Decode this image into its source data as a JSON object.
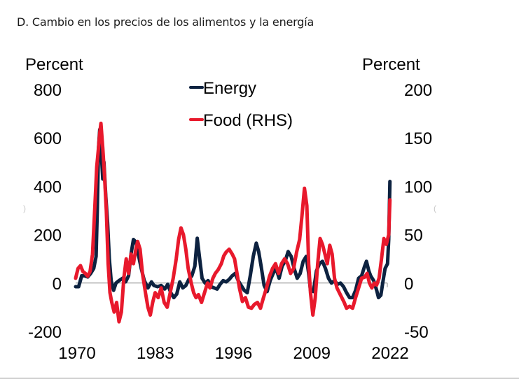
{
  "page": {
    "title": "D. Cambio en los precios de los alimentos y la energía"
  },
  "chart_data": {
    "type": "line",
    "title": "D. Cambio en los precios de los alimentos y la energía",
    "left_axis": {
      "label": "Percent",
      "ticks": [
        800,
        600,
        400,
        200,
        0,
        -200
      ],
      "tick_labels": [
        "800",
        "600",
        "400",
        "200",
        "0",
        "-200"
      ],
      "range": [
        -200,
        800
      ]
    },
    "right_axis": {
      "label": "Percent",
      "ticks": [
        200,
        150,
        100,
        50,
        0,
        -50
      ],
      "tick_labels": [
        "200",
        "150",
        "100",
        "50",
        "0",
        "-50"
      ],
      "range": [
        -50,
        200
      ]
    },
    "x_axis": {
      "ticks": [
        1970,
        1983,
        1996,
        2009,
        2022
      ],
      "tick_labels": [
        "1970",
        "1983",
        "1996",
        "2009",
        "2022"
      ],
      "range": [
        1970,
        2022
      ]
    },
    "grid": false,
    "legend": {
      "position": "top-center",
      "entries": [
        {
          "name": "Energy",
          "color": "#0d2240"
        },
        {
          "name": "Food (RHS)",
          "color": "#e8192c"
        }
      ]
    },
    "series": [
      {
        "name": "Energy",
        "axis": "left",
        "color": "#0d2240",
        "points": [
          [
            1970.0,
            -15
          ],
          [
            1970.5,
            -15
          ],
          [
            1971.0,
            30
          ],
          [
            1971.5,
            30
          ],
          [
            1972.0,
            25
          ],
          [
            1972.5,
            40
          ],
          [
            1973.0,
            60
          ],
          [
            1973.4,
            110
          ],
          [
            1973.6,
            300
          ],
          [
            1973.8,
            560
          ],
          [
            1974.0,
            635
          ],
          [
            1974.3,
            520
          ],
          [
            1974.5,
            430
          ],
          [
            1974.7,
            500
          ],
          [
            1975.0,
            360
          ],
          [
            1975.3,
            250
          ],
          [
            1975.6,
            100
          ],
          [
            1975.9,
            10
          ],
          [
            1976.3,
            -30
          ],
          [
            1976.7,
            0
          ],
          [
            1977.2,
            10
          ],
          [
            1977.8,
            20
          ],
          [
            1978.3,
            5
          ],
          [
            1978.8,
            30
          ],
          [
            1979.2,
            120
          ],
          [
            1979.6,
            180
          ],
          [
            1980.0,
            170
          ],
          [
            1980.4,
            120
          ],
          [
            1980.9,
            60
          ],
          [
            1981.4,
            10
          ],
          [
            1982.0,
            -20
          ],
          [
            1982.6,
            5
          ],
          [
            1983.0,
            -10
          ],
          [
            1983.6,
            -15
          ],
          [
            1984.2,
            -10
          ],
          [
            1984.8,
            -25
          ],
          [
            1985.3,
            -5
          ],
          [
            1985.8,
            -40
          ],
          [
            1986.3,
            -60
          ],
          [
            1986.8,
            -45
          ],
          [
            1987.3,
            5
          ],
          [
            1987.8,
            -20
          ],
          [
            1988.3,
            -10
          ],
          [
            1988.8,
            15
          ],
          [
            1989.3,
            30
          ],
          [
            1989.8,
            70
          ],
          [
            1990.2,
            185
          ],
          [
            1990.6,
            100
          ],
          [
            1991.0,
            20
          ],
          [
            1991.5,
            0
          ],
          [
            1992.0,
            10
          ],
          [
            1992.5,
            -15
          ],
          [
            1993.0,
            -20
          ],
          [
            1993.5,
            -25
          ],
          [
            1994.0,
            -5
          ],
          [
            1994.5,
            10
          ],
          [
            1995.0,
            5
          ],
          [
            1995.5,
            15
          ],
          [
            1996.0,
            30
          ],
          [
            1996.5,
            40
          ],
          [
            1997.0,
            10
          ],
          [
            1997.5,
            -10
          ],
          [
            1998.0,
            -30
          ],
          [
            1998.5,
            -40
          ],
          [
            1999.0,
            30
          ],
          [
            1999.5,
            110
          ],
          [
            2000.0,
            165
          ],
          [
            2000.4,
            130
          ],
          [
            2000.8,
            70
          ],
          [
            2001.3,
            -10
          ],
          [
            2001.8,
            -35
          ],
          [
            2002.3,
            10
          ],
          [
            2002.8,
            40
          ],
          [
            2003.3,
            60
          ],
          [
            2003.8,
            20
          ],
          [
            2004.3,
            70
          ],
          [
            2004.8,
            90
          ],
          [
            2005.3,
            130
          ],
          [
            2005.8,
            110
          ],
          [
            2006.3,
            60
          ],
          [
            2006.8,
            20
          ],
          [
            2007.3,
            40
          ],
          [
            2007.8,
            90
          ],
          [
            2008.3,
            110
          ],
          [
            2008.7,
            40
          ],
          [
            2009.0,
            -30
          ],
          [
            2009.5,
            -35
          ],
          [
            2010.0,
            50
          ],
          [
            2010.5,
            80
          ],
          [
            2011.0,
            90
          ],
          [
            2011.5,
            60
          ],
          [
            2012.0,
            20
          ],
          [
            2012.5,
            0
          ],
          [
            2013.0,
            10
          ],
          [
            2013.5,
            -5
          ],
          [
            2014.0,
            0
          ],
          [
            2014.5,
            -15
          ],
          [
            2015.0,
            -40
          ],
          [
            2015.5,
            -60
          ],
          [
            2016.0,
            -60
          ],
          [
            2016.5,
            -30
          ],
          [
            2017.0,
            20
          ],
          [
            2017.5,
            30
          ],
          [
            2018.0,
            70
          ],
          [
            2018.3,
            90
          ],
          [
            2018.7,
            50
          ],
          [
            2019.0,
            30
          ],
          [
            2019.5,
            10
          ],
          [
            2020.0,
            -30
          ],
          [
            2020.3,
            -60
          ],
          [
            2020.7,
            -50
          ],
          [
            2021.0,
            0
          ],
          [
            2021.4,
            60
          ],
          [
            2021.8,
            80
          ],
          [
            2022.0,
            180
          ],
          [
            2022.2,
            420
          ]
        ]
      },
      {
        "name": "Food (RHS)",
        "axis": "right",
        "color": "#e8192c",
        "points": [
          [
            1970.0,
            5
          ],
          [
            1970.4,
            15
          ],
          [
            1970.8,
            18
          ],
          [
            1971.2,
            12
          ],
          [
            1971.6,
            10
          ],
          [
            1972.0,
            7
          ],
          [
            1972.4,
            12
          ],
          [
            1972.8,
            30
          ],
          [
            1973.2,
            80
          ],
          [
            1973.5,
            120
          ],
          [
            1973.8,
            140
          ],
          [
            1974.0,
            155
          ],
          [
            1974.2,
            165
          ],
          [
            1974.5,
            140
          ],
          [
            1974.8,
            110
          ],
          [
            1975.1,
            75
          ],
          [
            1975.4,
            20
          ],
          [
            1975.7,
            -10
          ],
          [
            1976.0,
            -20
          ],
          [
            1976.4,
            -30
          ],
          [
            1976.8,
            -20
          ],
          [
            1977.2,
            -40
          ],
          [
            1977.6,
            -30
          ],
          [
            1978.0,
            5
          ],
          [
            1978.4,
            25
          ],
          [
            1978.8,
            10
          ],
          [
            1979.2,
            30
          ],
          [
            1979.6,
            20
          ],
          [
            1980.0,
            35
          ],
          [
            1980.3,
            43
          ],
          [
            1980.7,
            35
          ],
          [
            1981.1,
            10
          ],
          [
            1981.6,
            -10
          ],
          [
            1982.0,
            -25
          ],
          [
            1982.4,
            -33
          ],
          [
            1982.8,
            -20
          ],
          [
            1983.2,
            -10
          ],
          [
            1983.7,
            -15
          ],
          [
            1984.2,
            -5
          ],
          [
            1984.7,
            -20
          ],
          [
            1985.2,
            -25
          ],
          [
            1985.7,
            -10
          ],
          [
            1986.2,
            5
          ],
          [
            1986.7,
            25
          ],
          [
            1987.1,
            45
          ],
          [
            1987.5,
            57
          ],
          [
            1987.9,
            50
          ],
          [
            1988.3,
            35
          ],
          [
            1988.7,
            15
          ],
          [
            1989.2,
            0
          ],
          [
            1989.6,
            -10
          ],
          [
            1990.0,
            -15
          ],
          [
            1990.4,
            -12
          ],
          [
            1990.9,
            -20
          ],
          [
            1991.4,
            -10
          ],
          [
            1991.9,
            0
          ],
          [
            1992.3,
            -5
          ],
          [
            1992.8,
            5
          ],
          [
            1993.2,
            10
          ],
          [
            1993.7,
            14
          ],
          [
            1994.2,
            20
          ],
          [
            1994.6,
            28
          ],
          [
            1995.0,
            32
          ],
          [
            1995.5,
            35
          ],
          [
            1996.0,
            30
          ],
          [
            1996.4,
            25
          ],
          [
            1996.8,
            10
          ],
          [
            1997.2,
            -5
          ],
          [
            1997.7,
            -19
          ],
          [
            1998.2,
            -15
          ],
          [
            1998.7,
            -25
          ],
          [
            1999.2,
            -26
          ],
          [
            1999.7,
            -22
          ],
          [
            2000.2,
            -20
          ],
          [
            2000.7,
            -26
          ],
          [
            2001.2,
            -15
          ],
          [
            2001.7,
            -5
          ],
          [
            2002.2,
            7
          ],
          [
            2002.7,
            15
          ],
          [
            2003.2,
            20
          ],
          [
            2003.7,
            10
          ],
          [
            2004.2,
            20
          ],
          [
            2004.7,
            25
          ],
          [
            2005.2,
            20
          ],
          [
            2005.7,
            10
          ],
          [
            2006.2,
            15
          ],
          [
            2006.7,
            32
          ],
          [
            2007.2,
            45
          ],
          [
            2007.6,
            70
          ],
          [
            2008.0,
            98
          ],
          [
            2008.4,
            80
          ],
          [
            2008.7,
            20
          ],
          [
            2009.0,
            -10
          ],
          [
            2009.4,
            -33
          ],
          [
            2009.8,
            -15
          ],
          [
            2010.2,
            20
          ],
          [
            2010.6,
            46
          ],
          [
            2011.0,
            40
          ],
          [
            2011.4,
            30
          ],
          [
            2011.8,
            20
          ],
          [
            2012.2,
            39
          ],
          [
            2012.6,
            30
          ],
          [
            2013.0,
            5
          ],
          [
            2013.4,
            -5
          ],
          [
            2013.8,
            -10
          ],
          [
            2014.2,
            -15
          ],
          [
            2014.6,
            -20
          ],
          [
            2015.0,
            -26
          ],
          [
            2015.5,
            -24
          ],
          [
            2016.0,
            -26
          ],
          [
            2016.5,
            -15
          ],
          [
            2017.0,
            -5
          ],
          [
            2017.5,
            5
          ],
          [
            2018.0,
            6
          ],
          [
            2018.4,
            10
          ],
          [
            2018.8,
            0
          ],
          [
            2019.2,
            -5
          ],
          [
            2019.6,
            0
          ],
          [
            2020.0,
            -2
          ],
          [
            2020.4,
            5
          ],
          [
            2020.8,
            25
          ],
          [
            2021.2,
            46
          ],
          [
            2021.6,
            40
          ],
          [
            2022.0,
            50
          ],
          [
            2022.2,
            86
          ]
        ]
      }
    ]
  }
}
